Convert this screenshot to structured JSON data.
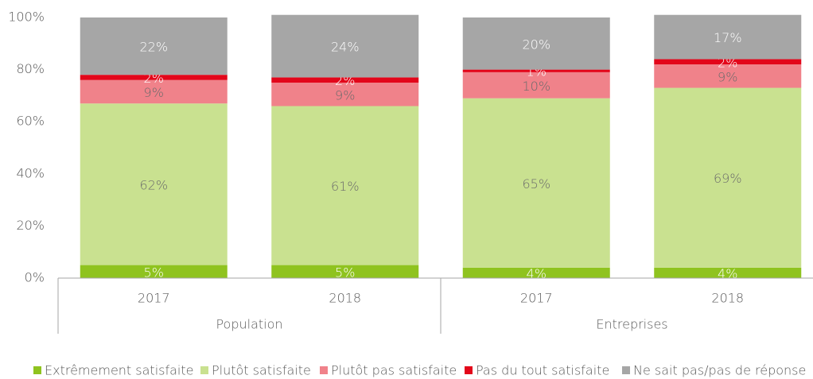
{
  "chart_data": {
    "type": "stacked_bar",
    "groups": [
      {
        "name": "Population",
        "categories": [
          "2017",
          "2018"
        ]
      },
      {
        "name": "Entreprises",
        "categories": [
          "2017",
          "2018"
        ]
      }
    ],
    "ylim": [
      0,
      100
    ],
    "yticks": [
      {
        "value": 0,
        "label": "0%"
      },
      {
        "value": 20,
        "label": "20%"
      },
      {
        "value": 40,
        "label": "40%"
      },
      {
        "value": 60,
        "label": "60%"
      },
      {
        "value": 80,
        "label": "80%"
      },
      {
        "value": 100,
        "label": "100%"
      }
    ],
    "series": [
      {
        "name": "Extrêmement satisfaite",
        "color": "#8fc31f",
        "label_color": "#ffffff",
        "values": [
          5,
          5,
          4,
          4
        ],
        "value_labels": [
          "5%",
          "5%",
          "4%",
          "4%"
        ]
      },
      {
        "name": "Plutôt satisfaite",
        "color": "#c9e190",
        "label_color": "#6b6b6b",
        "values": [
          62,
          61,
          65,
          69
        ],
        "value_labels": [
          "62%",
          "61%",
          "65%",
          "69%"
        ]
      },
      {
        "name": "Plutôt pas satisfaite",
        "color": "#f0828a",
        "label_color": "#6b6b6b",
        "values": [
          9,
          9,
          10,
          9
        ],
        "value_labels": [
          "9%",
          "9%",
          "10%",
          "9%"
        ]
      },
      {
        "name": "Pas du tout satisfaite",
        "color": "#e3061a",
        "label_color": "#ffffff",
        "values": [
          2,
          2,
          1,
          2
        ],
        "value_labels": [
          "2%",
          "2%",
          "1%",
          "2%"
        ]
      },
      {
        "name": "Ne sait pas/pas de réponse",
        "color": "#a6a6a6",
        "label_color": "#ffffff",
        "values": [
          22,
          24,
          20,
          17
        ],
        "value_labels": [
          "22%",
          "24%",
          "20%",
          "17%"
        ]
      }
    ]
  }
}
